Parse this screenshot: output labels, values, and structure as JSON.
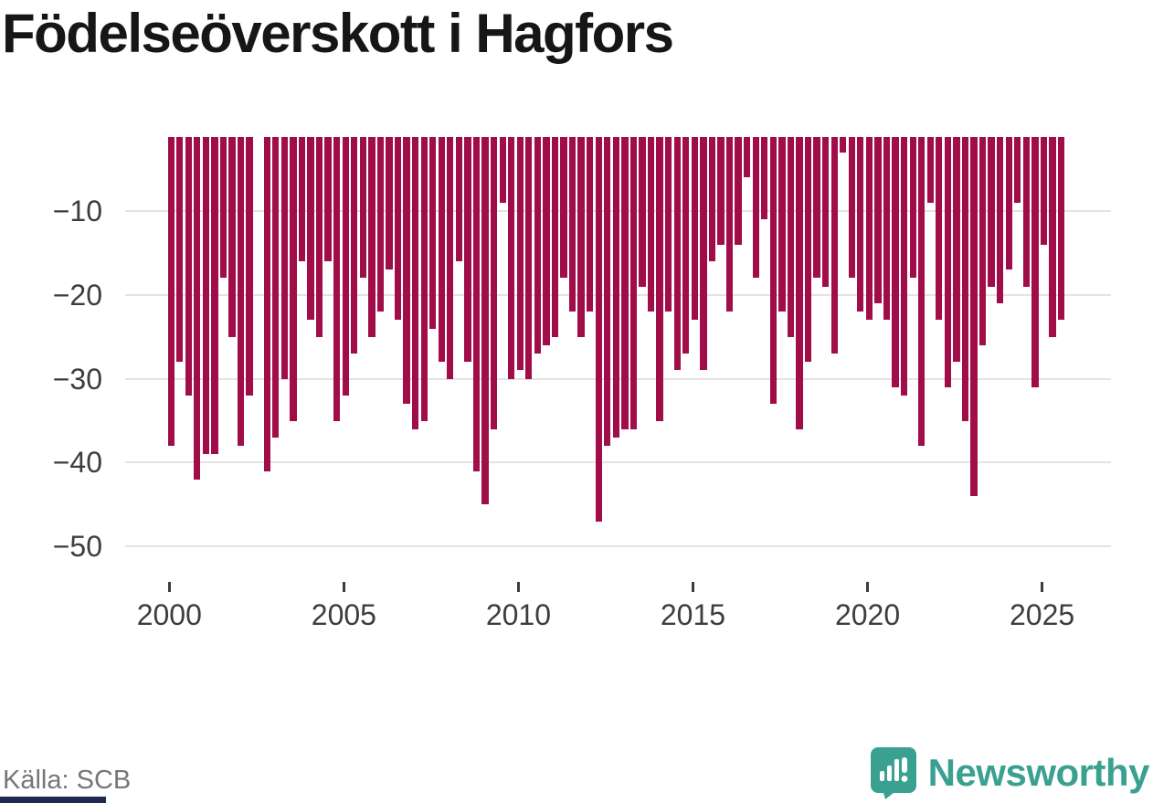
{
  "title": "Födelseöverskott i Hagfors",
  "source": "Källa: SCB",
  "brand": {
    "name": "Newsworthy",
    "icon": "newsworthy-speech-bubble-bar-chart-icon",
    "color": "#3aa191"
  },
  "colors": {
    "bar": "#a00d49",
    "grid": "#e3e3e3",
    "axis_text": "#3d3d3d",
    "title_text": "#161616",
    "source_text": "#767676",
    "footer_strip": "#1f2a50",
    "background": "#ffffff"
  },
  "chart_data": {
    "type": "bar",
    "title": "Födelseöverskott i Hagfors",
    "xlabel": "",
    "ylabel": "",
    "grid": true,
    "legend": false,
    "ylim": [
      -50,
      0
    ],
    "y_tick_values": [
      -10,
      -20,
      -30,
      -40,
      -50
    ],
    "y_tick_labels": [
      "−10",
      "−20",
      "−30",
      "−40",
      "−50"
    ],
    "x_tick_years": [
      "2000",
      "2005",
      "2010",
      "2015",
      "2020",
      "2025"
    ],
    "frequency": "quarterly",
    "x": [
      "2000 Q1",
      "2000 Q2",
      "2000 Q3",
      "2000 Q4",
      "2001 Q1",
      "2001 Q2",
      "2001 Q3",
      "2001 Q4",
      "2002 Q1",
      "2002 Q2",
      "2002 Q3",
      "2002 Q4",
      "2003 Q1",
      "2003 Q2",
      "2003 Q3",
      "2003 Q4",
      "2004 Q1",
      "2004 Q2",
      "2004 Q3",
      "2004 Q4",
      "2005 Q1",
      "2005 Q2",
      "2005 Q3",
      "2005 Q4",
      "2006 Q1",
      "2006 Q2",
      "2006 Q3",
      "2006 Q4",
      "2007 Q1",
      "2007 Q2",
      "2007 Q3",
      "2007 Q4",
      "2008 Q1",
      "2008 Q2",
      "2008 Q3",
      "2008 Q4",
      "2009 Q1",
      "2009 Q2",
      "2009 Q3",
      "2009 Q4",
      "2010 Q1",
      "2010 Q2",
      "2010 Q3",
      "2010 Q4",
      "2011 Q1",
      "2011 Q2",
      "2011 Q3",
      "2011 Q4",
      "2012 Q1",
      "2012 Q2",
      "2012 Q3",
      "2012 Q4",
      "2013 Q1",
      "2013 Q2",
      "2013 Q3",
      "2013 Q4",
      "2014 Q1",
      "2014 Q2",
      "2014 Q3",
      "2014 Q4",
      "2015 Q1",
      "2015 Q2",
      "2015 Q3",
      "2015 Q4",
      "2016 Q1",
      "2016 Q2",
      "2016 Q3",
      "2016 Q4",
      "2017 Q1",
      "2017 Q2",
      "2017 Q3",
      "2017 Q4",
      "2018 Q1",
      "2018 Q2",
      "2018 Q3",
      "2018 Q4",
      "2019 Q1",
      "2019 Q2",
      "2019 Q3",
      "2019 Q4",
      "2020 Q1",
      "2020 Q2",
      "2020 Q3",
      "2020 Q4",
      "2021 Q1",
      "2021 Q2",
      "2021 Q3",
      "2021 Q4",
      "2022 Q1",
      "2022 Q2",
      "2022 Q3",
      "2022 Q4",
      "2023 Q1",
      "2023 Q2",
      "2023 Q3",
      "2023 Q4",
      "2024 Q1",
      "2024 Q2",
      "2024 Q3",
      "2024 Q4",
      "2025 Q1",
      "2025 Q2",
      "2025 Q3"
    ],
    "values": [
      -38,
      -28,
      -32,
      -42,
      -39,
      -39,
      -18,
      -25,
      -38,
      -32,
      -1,
      -41,
      -37,
      -30,
      -35,
      -16,
      -23,
      -25,
      -16,
      -35,
      -32,
      -27,
      -18,
      -25,
      -22,
      -17,
      -23,
      -33,
      -36,
      -35,
      -24,
      -28,
      -30,
      -16,
      -28,
      -41,
      -45,
      -36,
      -9,
      -30,
      -29,
      -30,
      -27,
      -26,
      -25,
      -18,
      -22,
      -25,
      -22,
      -47,
      -38,
      -37,
      -36,
      -36,
      -19,
      -22,
      -35,
      -22,
      -29,
      -27,
      -23,
      -29,
      -16,
      -14,
      -22,
      -14,
      -6,
      -18,
      -11,
      -33,
      -22,
      -25,
      -36,
      -28,
      -18,
      -19,
      -27,
      -3,
      -18,
      -22,
      -23,
      -21,
      -23,
      -31,
      -32,
      -18,
      -38,
      -9,
      -23,
      -31,
      -28,
      -35,
      -44,
      -26,
      -19,
      -21,
      -17,
      -9,
      -19,
      -31,
      -14,
      -25,
      -23
    ]
  }
}
